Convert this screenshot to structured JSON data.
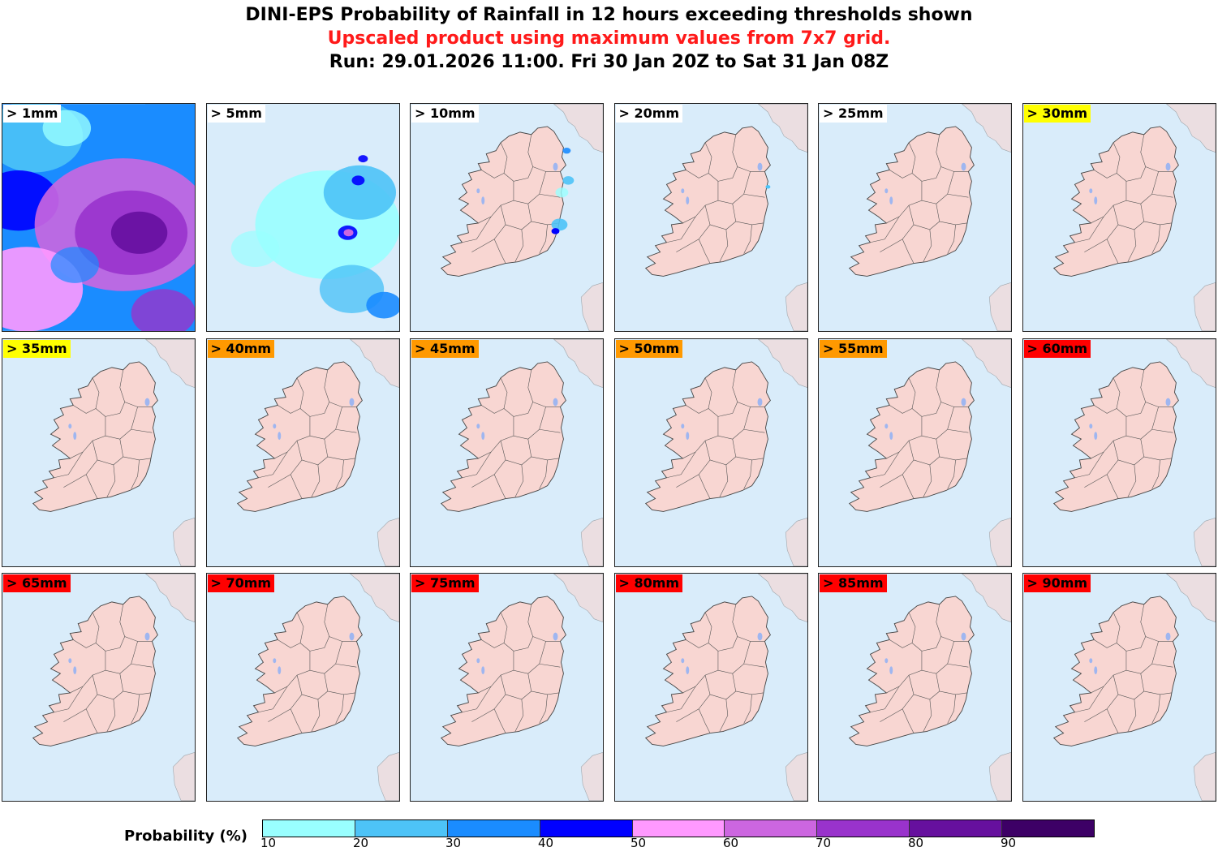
{
  "title": {
    "line1": "DINI-EPS Probability of Rainfall in 12 hours exceeding thresholds shown",
    "line2": "Upscaled product using maximum values from 7x7 grid.",
    "line2_color": "#ff1a1a",
    "line3": "Run: 29.01.2026 11:00. Fri 30 Jan 20Z to Sat 31 Jan 08Z"
  },
  "colors": {
    "sea": "#d9ecfa",
    "land": "#f8d6d2",
    "border": "#555555",
    "lake": "#9fb6f0",
    "label_white": "#ffffff",
    "label_yellow": "#ffff00",
    "label_orange": "#ff9900",
    "label_red": "#ff0000"
  },
  "panels": [
    {
      "label": "> 1mm",
      "label_color": "#ffffff",
      "field": "heavy"
    },
    {
      "label": "> 5mm",
      "label_color": "#ffffff",
      "field": "moderate"
    },
    {
      "label": "> 10mm",
      "label_color": "#ffffff",
      "field": "light"
    },
    {
      "label": "> 20mm",
      "label_color": "#ffffff",
      "field": "trace"
    },
    {
      "label": "> 25mm",
      "label_color": "#ffffff",
      "field": "none"
    },
    {
      "label": "> 30mm",
      "label_color": "#ffff00",
      "field": "none"
    },
    {
      "label": "> 35mm",
      "label_color": "#ffff00",
      "field": "none"
    },
    {
      "label": "> 40mm",
      "label_color": "#ff9900",
      "field": "none"
    },
    {
      "label": "> 45mm",
      "label_color": "#ff9900",
      "field": "none"
    },
    {
      "label": "> 50mm",
      "label_color": "#ff9900",
      "field": "none"
    },
    {
      "label": "> 55mm",
      "label_color": "#ff9900",
      "field": "none"
    },
    {
      "label": "> 60mm",
      "label_color": "#ff0000",
      "field": "none"
    },
    {
      "label": "> 65mm",
      "label_color": "#ff0000",
      "field": "none"
    },
    {
      "label": "> 70mm",
      "label_color": "#ff0000",
      "field": "none"
    },
    {
      "label": "> 75mm",
      "label_color": "#ff0000",
      "field": "none"
    },
    {
      "label": "> 80mm",
      "label_color": "#ff0000",
      "field": "none"
    },
    {
      "label": "> 85mm",
      "label_color": "#ff0000",
      "field": "none"
    },
    {
      "label": "> 90mm",
      "label_color": "#ff0000",
      "field": "none"
    }
  ],
  "colorbar": {
    "label": "Probability (%)",
    "ticks": [
      "10",
      "20",
      "30",
      "40",
      "50",
      "60",
      "70",
      "80",
      "90"
    ],
    "colors": [
      "#99ffff",
      "#4dc3f7",
      "#1a8cff",
      "#0000ff",
      "#ff99ff",
      "#cc66e0",
      "#9933cc",
      "#66109e",
      "#3d0066"
    ]
  }
}
